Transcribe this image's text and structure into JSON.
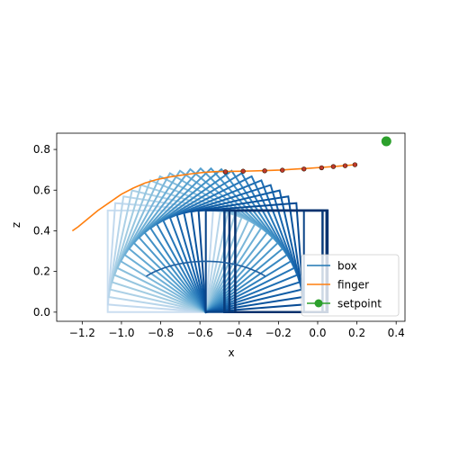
{
  "chart_data": {
    "type": "line",
    "xlabel": "x",
    "ylabel": "z",
    "xlim": [
      -1.33,
      0.445
    ],
    "ylim": [
      -0.045,
      0.88
    ],
    "xticks": [
      -1.2,
      -1.0,
      -0.8,
      -0.6,
      -0.4,
      -0.2,
      0.0,
      0.2,
      0.4
    ],
    "xtick_labels": [
      "−1.2",
      "−1.0",
      "−0.8",
      "−0.6",
      "−0.4",
      "−0.2",
      "0.0",
      "0.2",
      "0.4"
    ],
    "yticks": [
      0.0,
      0.2,
      0.4,
      0.6,
      0.8
    ],
    "ytick_labels": [
      "0.0",
      "0.2",
      "0.4",
      "0.6",
      "0.8"
    ],
    "grid": false,
    "legend_position": "lower-right",
    "legend": [
      {
        "name": "box",
        "color": "#1f77b4",
        "marker": "none"
      },
      {
        "name": "finger",
        "color": "#ff7f0e",
        "marker": "none"
      },
      {
        "name": "setpoint",
        "color": "#2ca02c",
        "marker": "circle"
      }
    ],
    "box_frames": {
      "pivot": [
        -0.57,
        0.0
      ],
      "side": 0.5,
      "count": 22,
      "angle_start_deg": 0,
      "angle_end_deg": 90,
      "colormap": "Blues",
      "final_frames": [
        {
          "x0": -0.475,
          "x1": 0.025
        },
        {
          "x0": -0.45,
          "x1": 0.05
        },
        {
          "x0": -0.42,
          "x1": 0.045
        }
      ],
      "arc_center": [
        -0.57,
        0.0
      ]
    },
    "series": [
      {
        "name": "finger",
        "color": "#ff7f0e",
        "x": [
          -1.25,
          -1.22,
          -1.17,
          -1.12,
          -1.06,
          -1.0,
          -0.94,
          -0.88,
          -0.82,
          -0.76,
          -0.7,
          -0.64,
          -0.58,
          -0.52,
          -0.46,
          -0.4,
          -0.34,
          -0.27,
          -0.19,
          -0.11,
          -0.04,
          0.02,
          0.08,
          0.13,
          0.19
        ],
        "y": [
          0.4,
          0.42,
          0.46,
          0.5,
          0.54,
          0.58,
          0.61,
          0.635,
          0.652,
          0.664,
          0.673,
          0.681,
          0.687,
          0.691,
          0.692,
          0.693,
          0.694,
          0.696,
          0.699,
          0.704,
          0.708,
          0.712,
          0.716,
          0.72,
          0.725
        ]
      },
      {
        "name": "finger-markers",
        "color": "#ff7f0e",
        "x": [
          -0.47,
          -0.38,
          -0.27,
          -0.18,
          -0.07,
          0.02,
          0.08,
          0.14,
          0.19
        ],
        "y": [
          0.69,
          0.693,
          0.695,
          0.698,
          0.704,
          0.71,
          0.716,
          0.72,
          0.725
        ]
      },
      {
        "name": "setpoint",
        "color": "#2ca02c",
        "x": [
          0.35
        ],
        "y": [
          0.84
        ]
      }
    ]
  }
}
